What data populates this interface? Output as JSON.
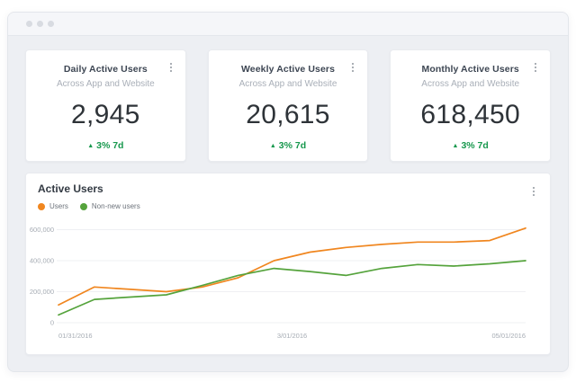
{
  "window": {
    "controls_icon": "traffic-dots-icon",
    "card_menu_icon": "kebab-vertical-icon"
  },
  "cards": [
    {
      "title": "Daily Active Users",
      "subtitle": "Across App and Website",
      "value": "2,945",
      "delta_label": "3% 7d"
    },
    {
      "title": "Weekly Active Users",
      "subtitle": "Across App and Website",
      "value": "20,615",
      "delta_label": "3% 7d"
    },
    {
      "title": "Monthly Active Users",
      "subtitle": "Across App and Website",
      "value": "618,450",
      "delta_label": "3% 7d"
    }
  ],
  "delta": {
    "arrow": "▲",
    "color": "#17984d"
  },
  "chart": {
    "title": "Active Users"
  },
  "chart_data": {
    "type": "line",
    "title": "Active Users",
    "x": [
      1,
      2,
      3,
      4,
      5,
      6,
      7,
      8,
      9,
      10,
      11,
      12,
      13,
      14
    ],
    "series": [
      {
        "name": "Users",
        "color": "#f0861f",
        "values": [
          115000,
          230000,
          215000,
          200000,
          230000,
          290000,
          400000,
          455000,
          485000,
          505000,
          520000,
          520000,
          530000,
          610000
        ]
      },
      {
        "name": "Non-new users",
        "color": "#55a33c",
        "values": [
          50000,
          150000,
          165000,
          180000,
          240000,
          305000,
          350000,
          330000,
          305000,
          350000,
          375000,
          365000,
          380000,
          400000
        ]
      }
    ],
    "ylim": [
      0,
      600000
    ],
    "ytick_values": [
      0,
      200000,
      400000,
      600000
    ],
    "ytick_labels": [
      "0",
      "200,000",
      "400,000",
      "600,000"
    ],
    "xtick_labels": [
      "01/31/2016",
      "3/01/2016",
      "05/01/2016"
    ],
    "grid": "horizontal",
    "legend_position": "top-left",
    "axis_text_color": "#a6acb4",
    "grid_color": "#eff0f3"
  }
}
